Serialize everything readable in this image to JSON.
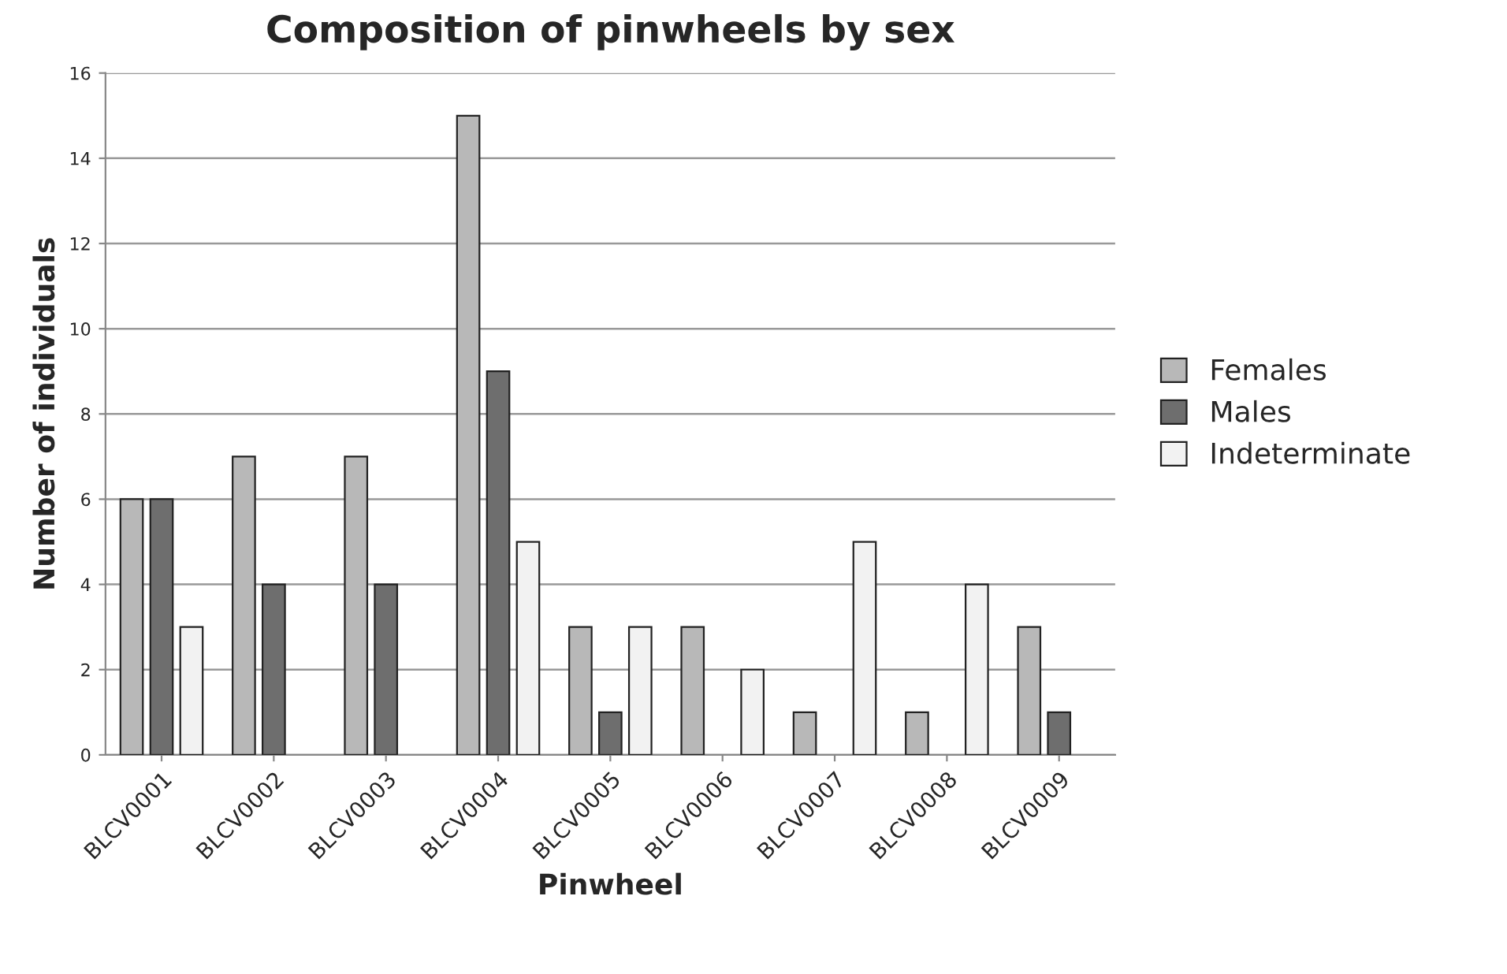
{
  "chart_data": {
    "type": "bar",
    "title": "Composition of pinwheels by sex",
    "xlabel": "Pinwheel",
    "ylabel": "Number of individuals",
    "categories": [
      "BLCV0001",
      "BLCV0002",
      "BLCV0003",
      "BLCV0004",
      "BLCV0005",
      "BLCV0006",
      "BLCV0007",
      "BLCV0008",
      "BLCV0009"
    ],
    "series": [
      {
        "name": "Females",
        "color": "#b8b8b8",
        "values": [
          6,
          7,
          7,
          15,
          3,
          3,
          1,
          1,
          3
        ]
      },
      {
        "name": "Males",
        "color": "#6e6e6e",
        "values": [
          6,
          4,
          4,
          9,
          1,
          null,
          null,
          null,
          1
        ]
      },
      {
        "name": "Indeterminate",
        "color": "#f2f2f2",
        "values": [
          3,
          null,
          null,
          5,
          3,
          2,
          5,
          4,
          null
        ]
      }
    ],
    "ylim": [
      0,
      16
    ],
    "yticks": [
      0,
      2,
      4,
      6,
      8,
      10,
      12,
      14,
      16
    ],
    "grid": "y",
    "legend": "right"
  }
}
